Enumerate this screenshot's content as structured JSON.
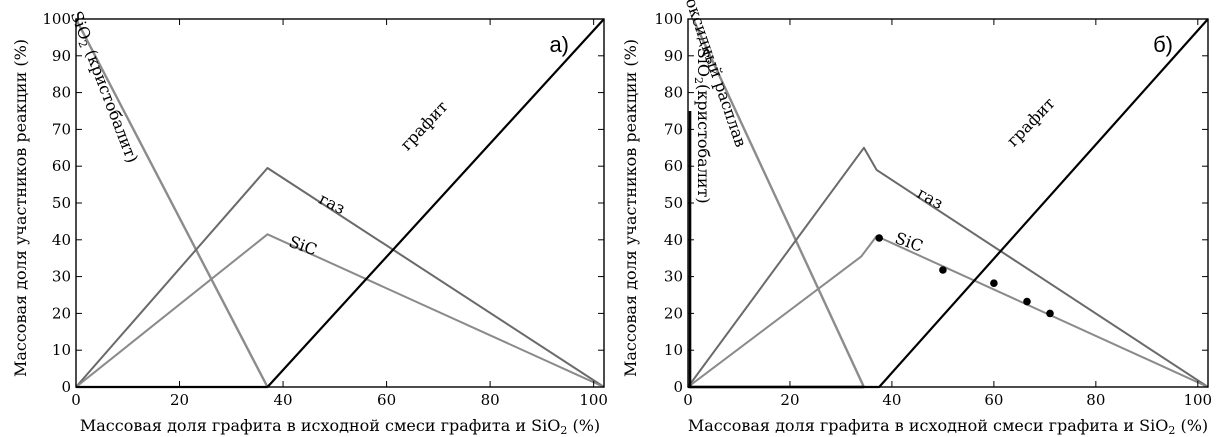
{
  "chart_data": [
    {
      "type": "line",
      "panel_label": "а)",
      "xlabel": "Массовая доля графита в исходной смеси графита  и  SiO₂ (%)",
      "ylabel": "Массовая доля участников реакции (%)",
      "xlim": [
        0,
        102
      ],
      "ylim": [
        0,
        100
      ],
      "xticks": [
        0,
        20,
        40,
        60,
        80,
        100
      ],
      "yticks": [
        0,
        10,
        20,
        30,
        40,
        50,
        60,
        70,
        80,
        90,
        100
      ],
      "series": [
        {
          "name": "SiO₂ (кристобалит)",
          "color": "#8c8c8c",
          "width": 2.4,
          "points": [
            [
              0,
              100
            ],
            [
              37,
              0
            ]
          ]
        },
        {
          "name": "газ",
          "color": "#6a6a6a",
          "width": 2,
          "points": [
            [
              0,
              0
            ],
            [
              37,
              59.5
            ],
            [
              102,
              0
            ]
          ]
        },
        {
          "name": "SiC",
          "color": "#8a8a8a",
          "width": 2,
          "points": [
            [
              0,
              0
            ],
            [
              37,
              41.5
            ],
            [
              102,
              0
            ]
          ]
        },
        {
          "name": "графит",
          "color": "#000000",
          "width": 2.2,
          "points": [
            [
              0,
              0
            ],
            [
              37,
              0
            ],
            [
              102,
              100
            ]
          ]
        }
      ],
      "labels": [
        {
          "series": "SiO₂ (кристобалит)",
          "x": 4.5,
          "y": 81,
          "angle": 69
        },
        {
          "series": "газ",
          "x": 49,
          "y": 48.5,
          "angle": 27
        },
        {
          "series": "SiC",
          "x": 43.5,
          "y": 37,
          "angle": 20
        },
        {
          "series": "графит",
          "x": 68,
          "y": 70,
          "angle": -47
        }
      ],
      "markers": []
    },
    {
      "type": "line",
      "panel_label": "б)",
      "xlabel": "Массовая доля графита в исходной смеси графита  и  SiO₂ (%)",
      "ylabel": "Массовая доля участников реакции (%)",
      "xlim": [
        0,
        102
      ],
      "ylim": [
        0,
        100
      ],
      "xticks": [
        0,
        20,
        40,
        60,
        80,
        100
      ],
      "yticks": [
        0,
        10,
        20,
        30,
        40,
        50,
        60,
        70,
        80,
        90,
        100
      ],
      "series": [
        {
          "name": "оксидный расплав",
          "color": "#8c8c8c",
          "width": 2.4,
          "points": [
            [
              1,
              100
            ],
            [
              34.5,
              0
            ]
          ]
        },
        {
          "name": "газ",
          "color": "#6a6a6a",
          "width": 2,
          "points": [
            [
              0,
              0
            ],
            [
              34.5,
              65
            ],
            [
              37,
              59
            ],
            [
              102,
              0
            ]
          ]
        },
        {
          "name": "SiC",
          "color": "#8a8a8a",
          "width": 2,
          "points": [
            [
              0,
              0
            ],
            [
              34,
              35.5
            ],
            [
              37,
              41
            ],
            [
              102,
              0
            ]
          ]
        },
        {
          "name": "графит",
          "color": "#000000",
          "width": 2.2,
          "points": [
            [
              0,
              0
            ],
            [
              37.5,
              0
            ],
            [
              102,
              100
            ]
          ]
        },
        {
          "name": "SiO₂(кристобалит)",
          "color": "#000000",
          "width": 2.6,
          "points": [
            [
              0.4,
              75
            ],
            [
              0.4,
              0
            ],
            [
              34.5,
              0
            ]
          ]
        }
      ],
      "labels": [
        {
          "series": "оксидный расплав",
          "x": 4.5,
          "y": 85,
          "angle": 71
        },
        {
          "series": "газ",
          "x": 47,
          "y": 50,
          "angle": 29
        },
        {
          "series": "SiC",
          "x": 43,
          "y": 38,
          "angle": 20
        },
        {
          "series": "графит",
          "x": 68,
          "y": 71,
          "angle": -46
        },
        {
          "series": "SiO₂(кристобалит)",
          "x": 2,
          "y": 71,
          "angle": 90
        }
      ],
      "markers": [
        [
          37.5,
          40.5
        ],
        [
          50,
          31.8
        ],
        [
          60,
          28.2
        ],
        [
          66.5,
          23.2
        ],
        [
          71,
          20
        ]
      ]
    }
  ]
}
